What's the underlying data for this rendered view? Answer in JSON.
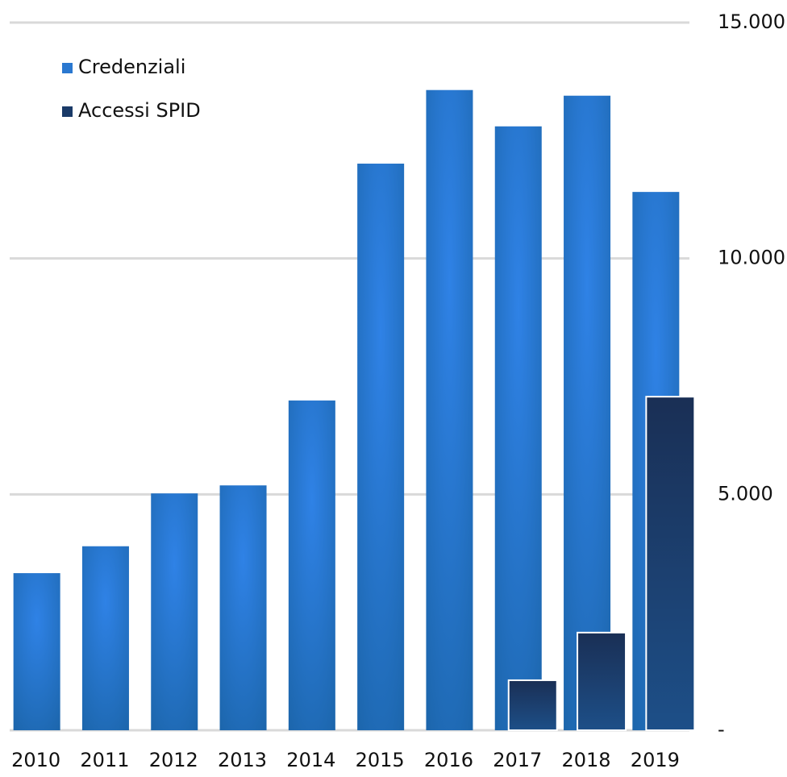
{
  "chart_data": {
    "type": "bar",
    "categories": [
      "2010",
      "2011",
      "2012",
      "2013",
      "2014",
      "2015",
      "2016",
      "2017",
      "2018",
      "2019"
    ],
    "series": [
      {
        "name": "Credenziali",
        "color": "#2a78d0",
        "values": [
          3330,
          3900,
          5020,
          5190,
          6990,
          12010,
          13570,
          12800,
          13450,
          11410
        ]
      },
      {
        "name": "Accessi SPID",
        "color": "#1a3a68",
        "values": [
          null,
          null,
          null,
          null,
          null,
          null,
          null,
          1060,
          2070,
          7070
        ]
      }
    ],
    "ylim": [
      0,
      15000
    ],
    "yticks": [
      {
        "value": 0,
        "label": "-"
      },
      {
        "value": 5000,
        "label": "5.000"
      },
      {
        "value": 10000,
        "label": "10.000"
      },
      {
        "value": 15000,
        "label": "15.000"
      }
    ],
    "grid": true,
    "legend": "top-left"
  }
}
